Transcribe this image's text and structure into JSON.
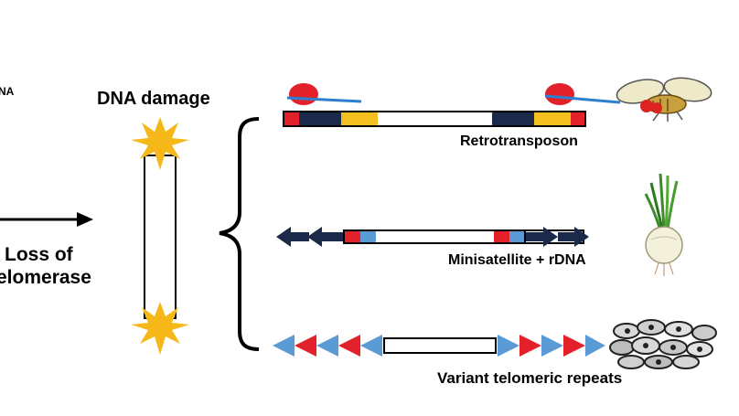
{
  "labels": {
    "corner_fragment": "NA",
    "dna_damage": "DNA damage",
    "loss_line1": "Loss of",
    "loss_line2": "elomerase",
    "retrotransposon": "Retrotransposon",
    "minisatellite": "Minisatellite + rDNA",
    "variant": "Variant telomeric repeats"
  },
  "colors": {
    "navy": "#1b2a4a",
    "gold": "#f3c01f",
    "red": "#e3212a",
    "light_blue": "#5b9bd5",
    "star": "#f5b818",
    "line_blue": "#2b7fce"
  },
  "icons": [
    "fly-icon",
    "onion-icon",
    "cells-icon"
  ]
}
